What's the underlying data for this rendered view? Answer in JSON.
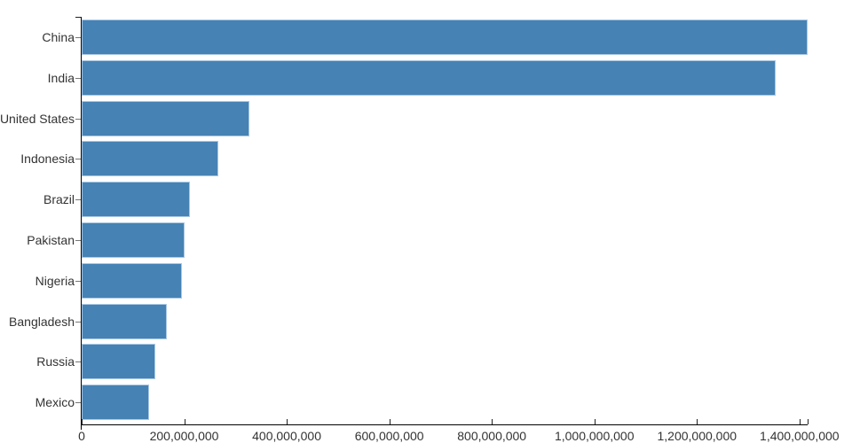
{
  "chart_data": {
    "type": "bar",
    "orientation": "horizontal",
    "title": "",
    "xlabel": "",
    "ylabel": "",
    "categories": [
      "China",
      "India",
      "United States",
      "Indonesia",
      "Brazil",
      "Pakistan",
      "Nigeria",
      "Bangladesh",
      "Russia",
      "Mexico"
    ],
    "values": [
      1415045928,
      1354051854,
      326766748,
      266794980,
      210867954,
      200813818,
      195875237,
      166368149,
      143964709,
      130759074
    ],
    "xlim": [
      0,
      1415045928
    ],
    "x_ticks": [
      0,
      200000000,
      400000000,
      600000000,
      800000000,
      1000000000,
      1200000000,
      1400000000
    ],
    "x_tick_labels": [
      "0",
      "200,000,000",
      "400,000,000",
      "600,000,000",
      "800,000,000",
      "1,000,000,000",
      "1,200,000,000",
      "1,400,000,000"
    ],
    "grid": false,
    "legend": false,
    "colors": {
      "bar_fill": "#4682b4",
      "bar_edge": "#aac8e4",
      "axis_line": "#000000",
      "x_tick_mark": "#222222",
      "y_tick_mark": "#777777",
      "label_text": "#333333"
    }
  }
}
